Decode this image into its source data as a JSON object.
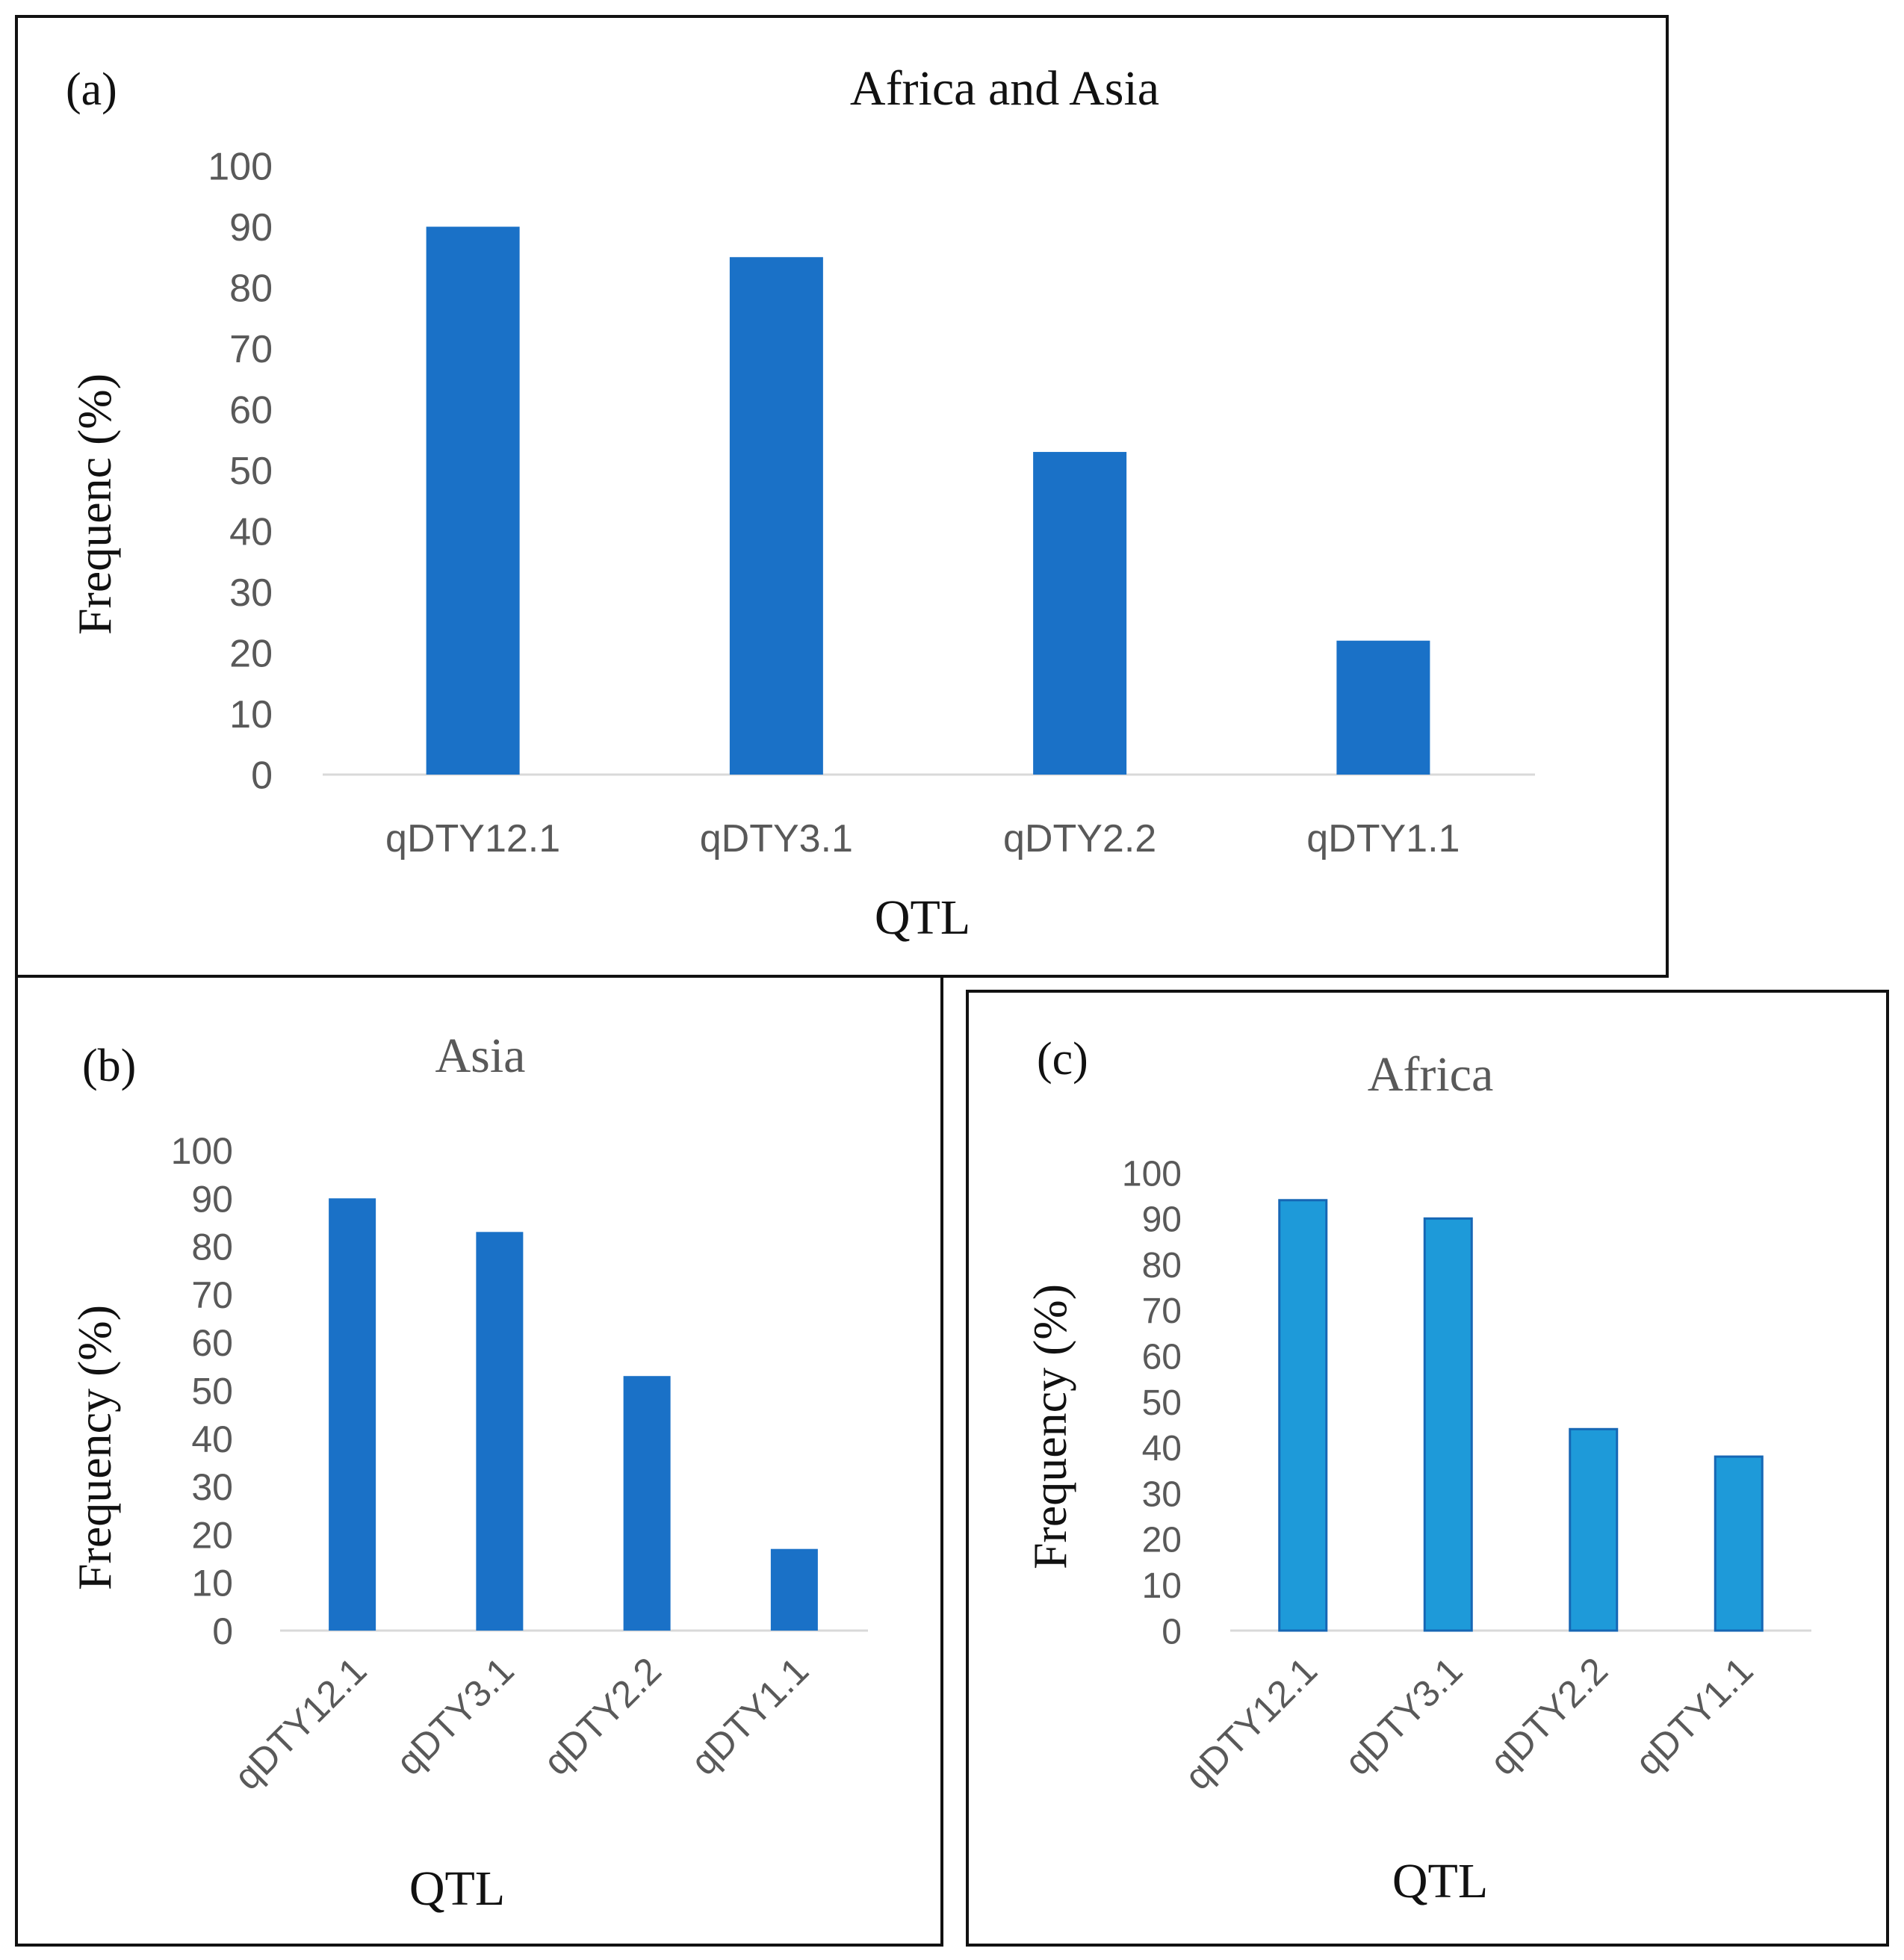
{
  "chart_data": [
    {
      "type": "bar",
      "panel_label": "(a)",
      "title": "Africa and Asia",
      "xlabel": "QTL",
      "ylabel": "Frequenc (%)",
      "categories": [
        "qDTY12.1",
        "qDTY3.1",
        "qDTY2.2",
        "qDTY1.1"
      ],
      "values": [
        90,
        85,
        53,
        22
      ],
      "ylim": [
        0,
        100
      ],
      "yticks": [
        "0",
        "10",
        "20",
        "30",
        "40",
        "50",
        "60",
        "70",
        "80",
        "90",
        "100"
      ],
      "bar_color": "#1a71c7",
      "grid": false
    },
    {
      "type": "bar",
      "panel_label": "(b)",
      "title": "Asia",
      "xlabel": "QTL",
      "ylabel": "Frequency (%)",
      "categories": [
        "qDTY12.1",
        "qDTY3.1",
        "qDTY2.2",
        "qDTY1.1"
      ],
      "values": [
        90,
        83,
        53,
        17
      ],
      "ylim": [
        0,
        100
      ],
      "yticks": [
        "0",
        "10",
        "20",
        "30",
        "40",
        "50",
        "60",
        "70",
        "80",
        "90",
        "100"
      ],
      "bar_color": "#1a71c7",
      "grid": false
    },
    {
      "type": "bar",
      "panel_label": "(c)",
      "title": "Africa",
      "xlabel": "QTL",
      "ylabel": "Frequency (%)",
      "categories": [
        "qDTY12.1",
        "qDTY3.1",
        "qDTY2.2",
        "qDTY1.1"
      ],
      "values": [
        94,
        90,
        44,
        38
      ],
      "ylim": [
        0,
        100
      ],
      "yticks": [
        "0",
        "10",
        "20",
        "30",
        "40",
        "50",
        "60",
        "70",
        "80",
        "90",
        "100"
      ],
      "bar_color": "#1e9ad9",
      "bar_edge_color": "#1667b5",
      "grid": false
    }
  ]
}
